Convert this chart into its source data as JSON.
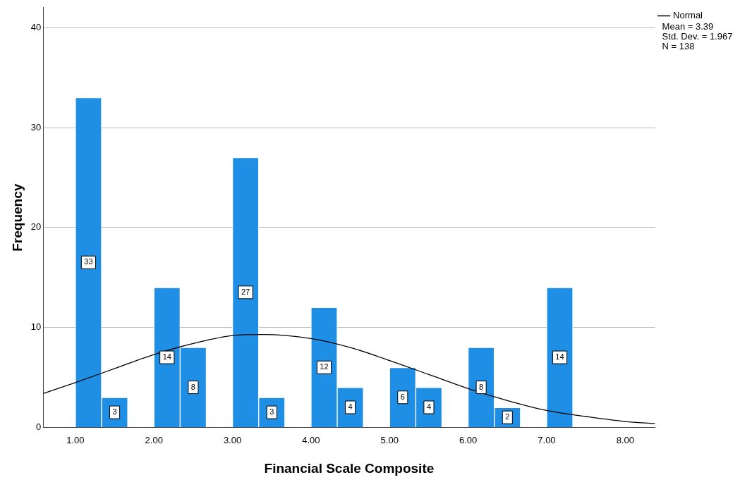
{
  "chart_data": {
    "type": "histogram",
    "xlabel": "Financial Scale Composite",
    "ylabel": "Frequency",
    "bins": [
      1,
      1.333,
      1.667,
      2,
      2.333,
      2.667,
      3,
      3.333,
      3.667,
      4,
      4.333,
      4.667,
      5,
      5.333,
      5.667,
      6,
      6.333,
      6.667,
      7,
      7.333
    ],
    "values": [
      33,
      3,
      0,
      14,
      8,
      0,
      27,
      3,
      0,
      12,
      4,
      0,
      6,
      4,
      0,
      8,
      2,
      0,
      14
    ],
    "value_labels": [
      "33",
      "3",
      null,
      "14",
      "8",
      null,
      "27",
      "3",
      null,
      "12",
      "4",
      null,
      "6",
      "4",
      null,
      "8",
      "2",
      null,
      "14"
    ],
    "color": "#1f8fe5",
    "series": [
      {
        "name": "Normal",
        "type": "line",
        "color": "#000000",
        "x": [
          0.59,
          1,
          1.5,
          2,
          2.5,
          3,
          3.39,
          4,
          4.5,
          5,
          5.5,
          6,
          6.5,
          7,
          7.5,
          8,
          8.38
        ],
        "values": [
          3.4,
          4.5,
          5.9,
          7.3,
          8.4,
          9.2,
          9.3,
          8.9,
          8.0,
          6.7,
          5.3,
          3.9,
          2.7,
          1.7,
          1.1,
          0.6,
          0.4
        ]
      }
    ],
    "xlim": [
      0.59,
      8.38
    ],
    "xticks": [
      {
        "value": 1,
        "label": "1.00"
      },
      {
        "value": 2,
        "label": "2.00"
      },
      {
        "value": 3,
        "label": "3.00"
      },
      {
        "value": 4,
        "label": "4.00"
      },
      {
        "value": 5,
        "label": "5.00"
      },
      {
        "value": 6,
        "label": "6.00"
      },
      {
        "value": 7,
        "label": "7.00"
      },
      {
        "value": 8,
        "label": "8.00"
      }
    ],
    "ylim": [
      0,
      42
    ],
    "yticks": [
      0,
      10,
      20,
      30,
      40
    ],
    "grid": "y",
    "legend": "top right",
    "marker": "none",
    "annotations": [
      "Mean = 3.39",
      "Std. Dev. = 1.967",
      "N = 138"
    ]
  }
}
